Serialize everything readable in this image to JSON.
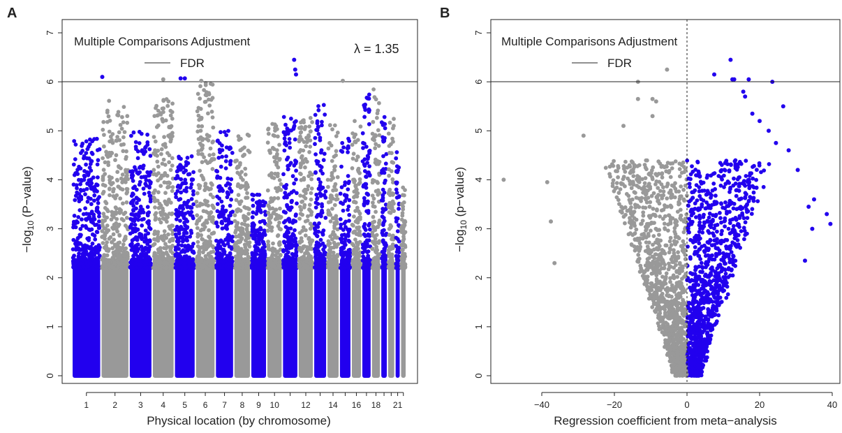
{
  "panels": [
    {
      "label": "A",
      "legend_title": "Multiple Comparisons Adjustment",
      "legend_item": "FDR",
      "lambda_text": "λ = 1.35",
      "ylabel_prefix": "−log",
      "ylabel_sub": "10",
      "ylabel_suffix": " (P−value)",
      "xlabel": "Physical location (by chromosome)"
    },
    {
      "label": "B",
      "legend_title": "Multiple Comparisons Adjustment",
      "legend_item": "FDR",
      "ylabel_prefix": "−log",
      "ylabel_sub": "10",
      "ylabel_suffix": " (p−value)",
      "xlabel": "Regression coefficient from meta−analysis"
    }
  ],
  "colors": {
    "blue": "#2200ee",
    "gray": "#999999",
    "line": "#222222"
  },
  "chart_data": [
    {
      "type": "scatter",
      "subtype": "manhattan",
      "ylim": [
        0,
        7
      ],
      "yticks": [
        "0",
        "1",
        "2",
        "3",
        "4",
        "5",
        "6",
        "7"
      ],
      "fdr_threshold": 6.0,
      "xtick_labels": [
        "1",
        "2",
        "3",
        "4",
        "5",
        "6",
        "7",
        "8",
        "9",
        "10",
        "12",
        "14",
        "16",
        "18",
        "21"
      ],
      "chromosomes": [
        {
          "chr": 1,
          "size": 2.49,
          "color": "blue",
          "max": 4.85
        },
        {
          "chr": 2,
          "size": 2.42,
          "color": "gray",
          "max": 5.65
        },
        {
          "chr": 3,
          "size": 1.98,
          "color": "blue",
          "max": 5.0
        },
        {
          "chr": 4,
          "size": 1.9,
          "color": "gray",
          "max": 5.65
        },
        {
          "chr": 5,
          "size": 1.81,
          "color": "blue",
          "max": 4.5
        },
        {
          "chr": 6,
          "size": 1.71,
          "color": "gray",
          "max": 6.0
        },
        {
          "chr": 7,
          "size": 1.59,
          "color": "blue",
          "max": 5.0
        },
        {
          "chr": 8,
          "size": 1.45,
          "color": "gray",
          "max": 5.0
        },
        {
          "chr": 9,
          "size": 1.38,
          "color": "blue",
          "max": 3.7
        },
        {
          "chr": 10,
          "size": 1.34,
          "color": "gray",
          "max": 5.15
        },
        {
          "chr": 11,
          "size": 1.35,
          "color": "blue",
          "max": 5.3
        },
        {
          "chr": 12,
          "size": 1.33,
          "color": "gray",
          "max": 5.3
        },
        {
          "chr": 13,
          "size": 1.14,
          "color": "blue",
          "max": 5.6
        },
        {
          "chr": 14,
          "size": 1.07,
          "color": "gray",
          "max": 5.2
        },
        {
          "chr": 15,
          "size": 1.02,
          "color": "blue",
          "max": 4.9
        },
        {
          "chr": 16,
          "size": 0.9,
          "color": "gray",
          "max": 5.2
        },
        {
          "chr": 17,
          "size": 0.83,
          "color": "blue",
          "max": 5.8
        },
        {
          "chr": 18,
          "size": 0.8,
          "color": "gray",
          "max": 5.85
        },
        {
          "chr": 19,
          "size": 0.59,
          "color": "blue",
          "max": 5.3
        },
        {
          "chr": 20,
          "size": 0.64,
          "color": "gray",
          "max": 5.25
        },
        {
          "chr": 21,
          "size": 0.47,
          "color": "blue",
          "max": 4.6
        },
        {
          "chr": 22,
          "size": 0.51,
          "color": "gray",
          "max": 3.9
        }
      ],
      "top_hits": [
        {
          "chr": 2,
          "pos": 0.05,
          "y": 6.1,
          "color": "blue"
        },
        {
          "chr": 4,
          "pos": 0.5,
          "y": 6.05,
          "color": "gray"
        },
        {
          "chr": 5,
          "pos": 0.3,
          "y": 6.07,
          "color": "blue"
        },
        {
          "chr": 5,
          "pos": 0.5,
          "y": 6.07,
          "color": "blue"
        },
        {
          "chr": 6,
          "pos": 0.3,
          "y": 6.02,
          "color": "gray"
        },
        {
          "chr": 11,
          "pos": 0.75,
          "y": 6.45,
          "color": "blue"
        },
        {
          "chr": 11,
          "pos": 0.82,
          "y": 6.25,
          "color": "blue"
        },
        {
          "chr": 11,
          "pos": 0.87,
          "y": 6.15,
          "color": "blue"
        },
        {
          "chr": 15,
          "pos": 0.3,
          "y": 6.02,
          "color": "gray"
        }
      ]
    },
    {
      "type": "scatter",
      "subtype": "volcano",
      "xlim": [
        -52,
        41
      ],
      "ylim": [
        0,
        7
      ],
      "xticks": [
        "-40",
        "-20",
        "0",
        "20",
        "40"
      ],
      "yticks": [
        "0",
        "1",
        "2",
        "3",
        "4",
        "5",
        "6",
        "7"
      ],
      "fdr_threshold": 6.0,
      "x_zero_line": 0,
      "negative_coefficient_color": "gray",
      "positive_coefficient_color": "blue",
      "points": [
        [
          -50.5,
          4.0
        ],
        [
          -38.5,
          3.95
        ],
        [
          -37.5,
          3.15
        ],
        [
          -28.5,
          4.9
        ],
        [
          -36.5,
          2.3
        ],
        [
          -13.5,
          6.0
        ],
        [
          -13.5,
          5.65
        ],
        [
          -9.5,
          5.65
        ],
        [
          -8.5,
          5.6
        ],
        [
          -5.5,
          6.25
        ],
        [
          -14.5,
          4.3
        ],
        [
          -17.5,
          5.1
        ],
        [
          -9.5,
          5.3
        ],
        [
          7.5,
          6.15
        ],
        [
          12.0,
          6.45
        ],
        [
          13.0,
          6.05
        ],
        [
          12.5,
          6.05
        ],
        [
          17.0,
          6.05
        ],
        [
          23.5,
          6.0
        ],
        [
          15.5,
          5.8
        ],
        [
          16.0,
          5.7
        ],
        [
          18.0,
          5.35
        ],
        [
          20.0,
          5.2
        ],
        [
          22.5,
          5.0
        ],
        [
          24.5,
          4.75
        ],
        [
          26.5,
          5.5
        ],
        [
          28.0,
          4.6
        ],
        [
          30.5,
          4.2
        ],
        [
          33.5,
          3.45
        ],
        [
          35.0,
          3.6
        ],
        [
          38.5,
          3.3
        ],
        [
          39.5,
          3.1
        ],
        [
          34.5,
          3.0
        ],
        [
          32.5,
          2.35
        ]
      ]
    }
  ]
}
